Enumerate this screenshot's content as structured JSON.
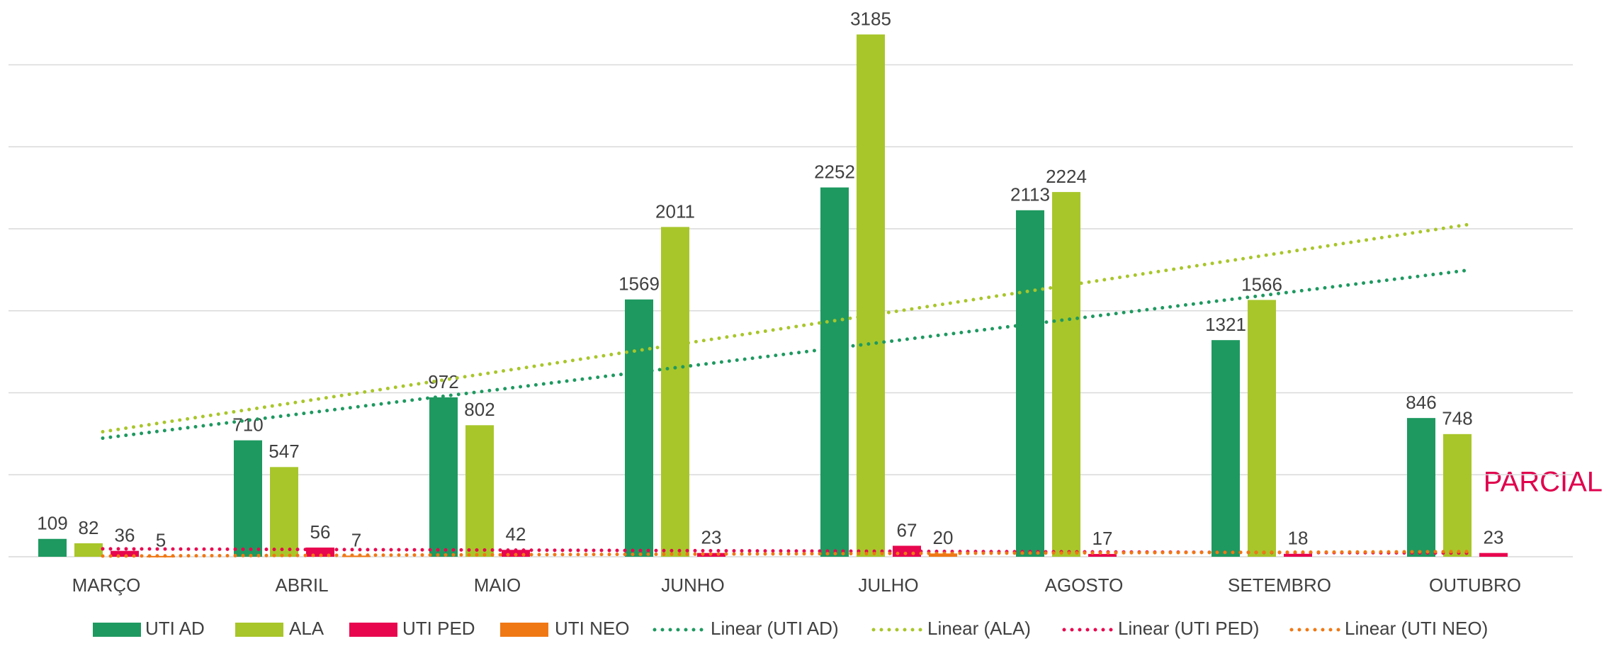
{
  "chart_data": {
    "type": "bar",
    "categories": [
      "MARÇO",
      "ABRIL",
      "MAIO",
      "JUNHO",
      "JULHO",
      "AGOSTO",
      "SETEMBRO",
      "OUTUBRO"
    ],
    "series": [
      {
        "name": "UTI AD",
        "color": "#1e9960",
        "values": [
          109,
          710,
          972,
          1569,
          2252,
          2113,
          1321,
          846
        ],
        "trendline": "Linear (UTI AD)"
      },
      {
        "name": "ALA",
        "color": "#a8c62a",
        "values": [
          82,
          547,
          802,
          2011,
          3185,
          2224,
          1566,
          748
        ],
        "trendline": "Linear (ALA)"
      },
      {
        "name": "UTI PED",
        "color": "#e8064f",
        "values": [
          36,
          56,
          42,
          23,
          67,
          17,
          18,
          23
        ],
        "trendline": "Linear (UTI PED)"
      },
      {
        "name": "UTI NEO",
        "color": "#f07814",
        "values": [
          5,
          7,
          null,
          null,
          20,
          null,
          null,
          null
        ],
        "trendline": "Linear (UTI NEO)"
      }
    ],
    "annotation": "PARCIAL",
    "ylim": [
      0,
      3300
    ],
    "yticks": [
      0,
      500,
      1000,
      1500,
      2000,
      2500,
      3000
    ],
    "grid": true
  }
}
